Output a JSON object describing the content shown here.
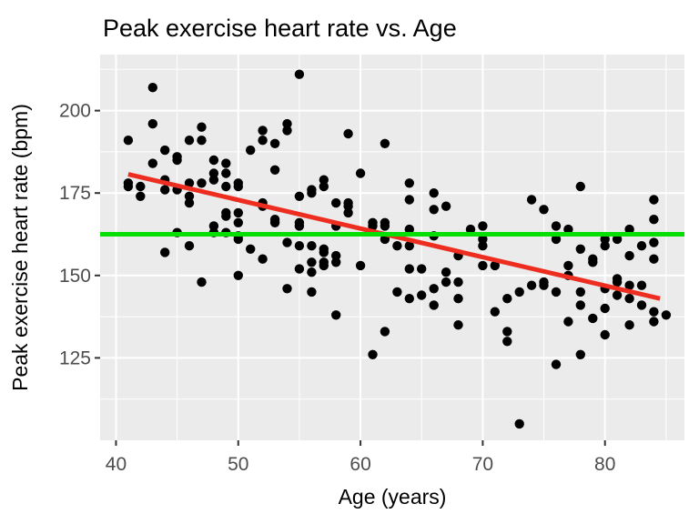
{
  "title": "Peak exercise heart rate vs. Age",
  "chart_data": {
    "type": "scatter",
    "title": "Peak exercise heart rate vs. Age",
    "xlabel": "Age (years)",
    "ylabel": "Peak exercise heart rate (bpm)",
    "xlim": [
      38.7,
      86.5
    ],
    "ylim": [
      100,
      217
    ],
    "x_breaks": [
      40,
      50,
      60,
      70,
      80
    ],
    "x_minor_breaks": [
      45,
      55,
      65,
      75,
      85
    ],
    "y_breaks": [
      125,
      150,
      175,
      200
    ],
    "y_minor_breaks": [
      112.5,
      137.5,
      162.5,
      187.5,
      212.5
    ],
    "grid": true,
    "legend": "none",
    "panel_bg": "#EBEBEB",
    "grid_color": "#FFFFFF",
    "point_color": "#000000",
    "trend_line": {
      "name": "linear-fit",
      "color": "#EC2D20",
      "x1": 41,
      "y1": 180.7,
      "x2": 84.5,
      "y2": 143.0
    },
    "mean_line": {
      "name": "mean-heart-rate",
      "color": "#06DE06",
      "y": 162.5
    },
    "points": [
      [
        43,
        207
      ],
      [
        43,
        196
      ],
      [
        41,
        191
      ],
      [
        47,
        195
      ],
      [
        46,
        191
      ],
      [
        47,
        191
      ],
      [
        52,
        194
      ],
      [
        54,
        194
      ],
      [
        54,
        196
      ],
      [
        52,
        191
      ],
      [
        53,
        190
      ],
      [
        51,
        188
      ],
      [
        44,
        188
      ],
      [
        43,
        184
      ],
      [
        45,
        186
      ],
      [
        45,
        185
      ],
      [
        48,
        185
      ],
      [
        49,
        184
      ],
      [
        53,
        182
      ],
      [
        41,
        178
      ],
      [
        41,
        177
      ],
      [
        42,
        174
      ],
      [
        42,
        177
      ],
      [
        44,
        176
      ],
      [
        44,
        179
      ],
      [
        45,
        176
      ],
      [
        46,
        172
      ],
      [
        46,
        174
      ],
      [
        46,
        178
      ],
      [
        47,
        178
      ],
      [
        48,
        181
      ],
      [
        48,
        179
      ],
      [
        49,
        177
      ],
      [
        49,
        181
      ],
      [
        50,
        177
      ],
      [
        50,
        178
      ],
      [
        49,
        169
      ],
      [
        49,
        168
      ],
      [
        50,
        166
      ],
      [
        48,
        165
      ],
      [
        48,
        163
      ],
      [
        49,
        163
      ],
      [
        50,
        169
      ],
      [
        52,
        171
      ],
      [
        52,
        172
      ],
      [
        53,
        167
      ],
      [
        53,
        166
      ],
      [
        45,
        163
      ],
      [
        50,
        162
      ],
      [
        54,
        160
      ],
      [
        46,
        159
      ],
      [
        50,
        161
      ],
      [
        55,
        211
      ],
      [
        59,
        193
      ],
      [
        62,
        190
      ],
      [
        60,
        181
      ],
      [
        57,
        179
      ],
      [
        57,
        177
      ],
      [
        55,
        174
      ],
      [
        56,
        175
      ],
      [
        56,
        176
      ],
      [
        64,
        178
      ],
      [
        66,
        175
      ],
      [
        64,
        173
      ],
      [
        58,
        172
      ],
      [
        59,
        172
      ],
      [
        59,
        171
      ],
      [
        59,
        169
      ],
      [
        66,
        170
      ],
      [
        67,
        171
      ],
      [
        55,
        166
      ],
      [
        55,
        165
      ],
      [
        58,
        165
      ],
      [
        61,
        165
      ],
      [
        61,
        166
      ],
      [
        62,
        166
      ],
      [
        62,
        165
      ],
      [
        64,
        164
      ],
      [
        66,
        162
      ],
      [
        69,
        164
      ],
      [
        70,
        161
      ],
      [
        62,
        161
      ],
      [
        63,
        159
      ],
      [
        78,
        177
      ],
      [
        74,
        173
      ],
      [
        75,
        170
      ],
      [
        84,
        173
      ],
      [
        84,
        167
      ],
      [
        70,
        165
      ],
      [
        76,
        165
      ],
      [
        77,
        164
      ],
      [
        82,
        164
      ],
      [
        80,
        161
      ],
      [
        81,
        161
      ],
      [
        84,
        160
      ],
      [
        76,
        161
      ],
      [
        44,
        157
      ],
      [
        51,
        158
      ],
      [
        52,
        155
      ],
      [
        50,
        150
      ],
      [
        47,
        148
      ],
      [
        54,
        146
      ],
      [
        55,
        159
      ],
      [
        56,
        159
      ],
      [
        57,
        158
      ],
      [
        57,
        157
      ],
      [
        58,
        156
      ],
      [
        58,
        154
      ],
      [
        57,
        154
      ],
      [
        57,
        153
      ],
      [
        56,
        154
      ],
      [
        55,
        152
      ],
      [
        56,
        151
      ],
      [
        60,
        153
      ],
      [
        56,
        145
      ],
      [
        58,
        138
      ],
      [
        62,
        133
      ],
      [
        61,
        126
      ],
      [
        63,
        145
      ],
      [
        64,
        143
      ],
      [
        64,
        152
      ],
      [
        64,
        159
      ],
      [
        68,
        156
      ],
      [
        65,
        152
      ],
      [
        67,
        151
      ],
      [
        67,
        148
      ],
      [
        68,
        148
      ],
      [
        65,
        144
      ],
      [
        66,
        141
      ],
      [
        66,
        146
      ],
      [
        68,
        143
      ],
      [
        68,
        135
      ],
      [
        70,
        159
      ],
      [
        70,
        153
      ],
      [
        78,
        158
      ],
      [
        80,
        159
      ],
      [
        83,
        159
      ],
      [
        82,
        156
      ],
      [
        84,
        155
      ],
      [
        71,
        153
      ],
      [
        77,
        153
      ],
      [
        79,
        155
      ],
      [
        79,
        154
      ],
      [
        77,
        150
      ],
      [
        73,
        145
      ],
      [
        74,
        147
      ],
      [
        75,
        147
      ],
      [
        75,
        148
      ],
      [
        72,
        143
      ],
      [
        71,
        139
      ],
      [
        76,
        145
      ],
      [
        78,
        145
      ],
      [
        78,
        141
      ],
      [
        80,
        140
      ],
      [
        80,
        146
      ],
      [
        81,
        148
      ],
      [
        81,
        149
      ],
      [
        81,
        144
      ],
      [
        82,
        143
      ],
      [
        83,
        141
      ],
      [
        82,
        147
      ],
      [
        83,
        147
      ],
      [
        84,
        139
      ],
      [
        85,
        138
      ],
      [
        84,
        136
      ],
      [
        79,
        137
      ],
      [
        80,
        132
      ],
      [
        82,
        135
      ],
      [
        77,
        136
      ],
      [
        72,
        133
      ],
      [
        72,
        130
      ],
      [
        78,
        126
      ],
      [
        76,
        123
      ],
      [
        73,
        105
      ]
    ]
  }
}
